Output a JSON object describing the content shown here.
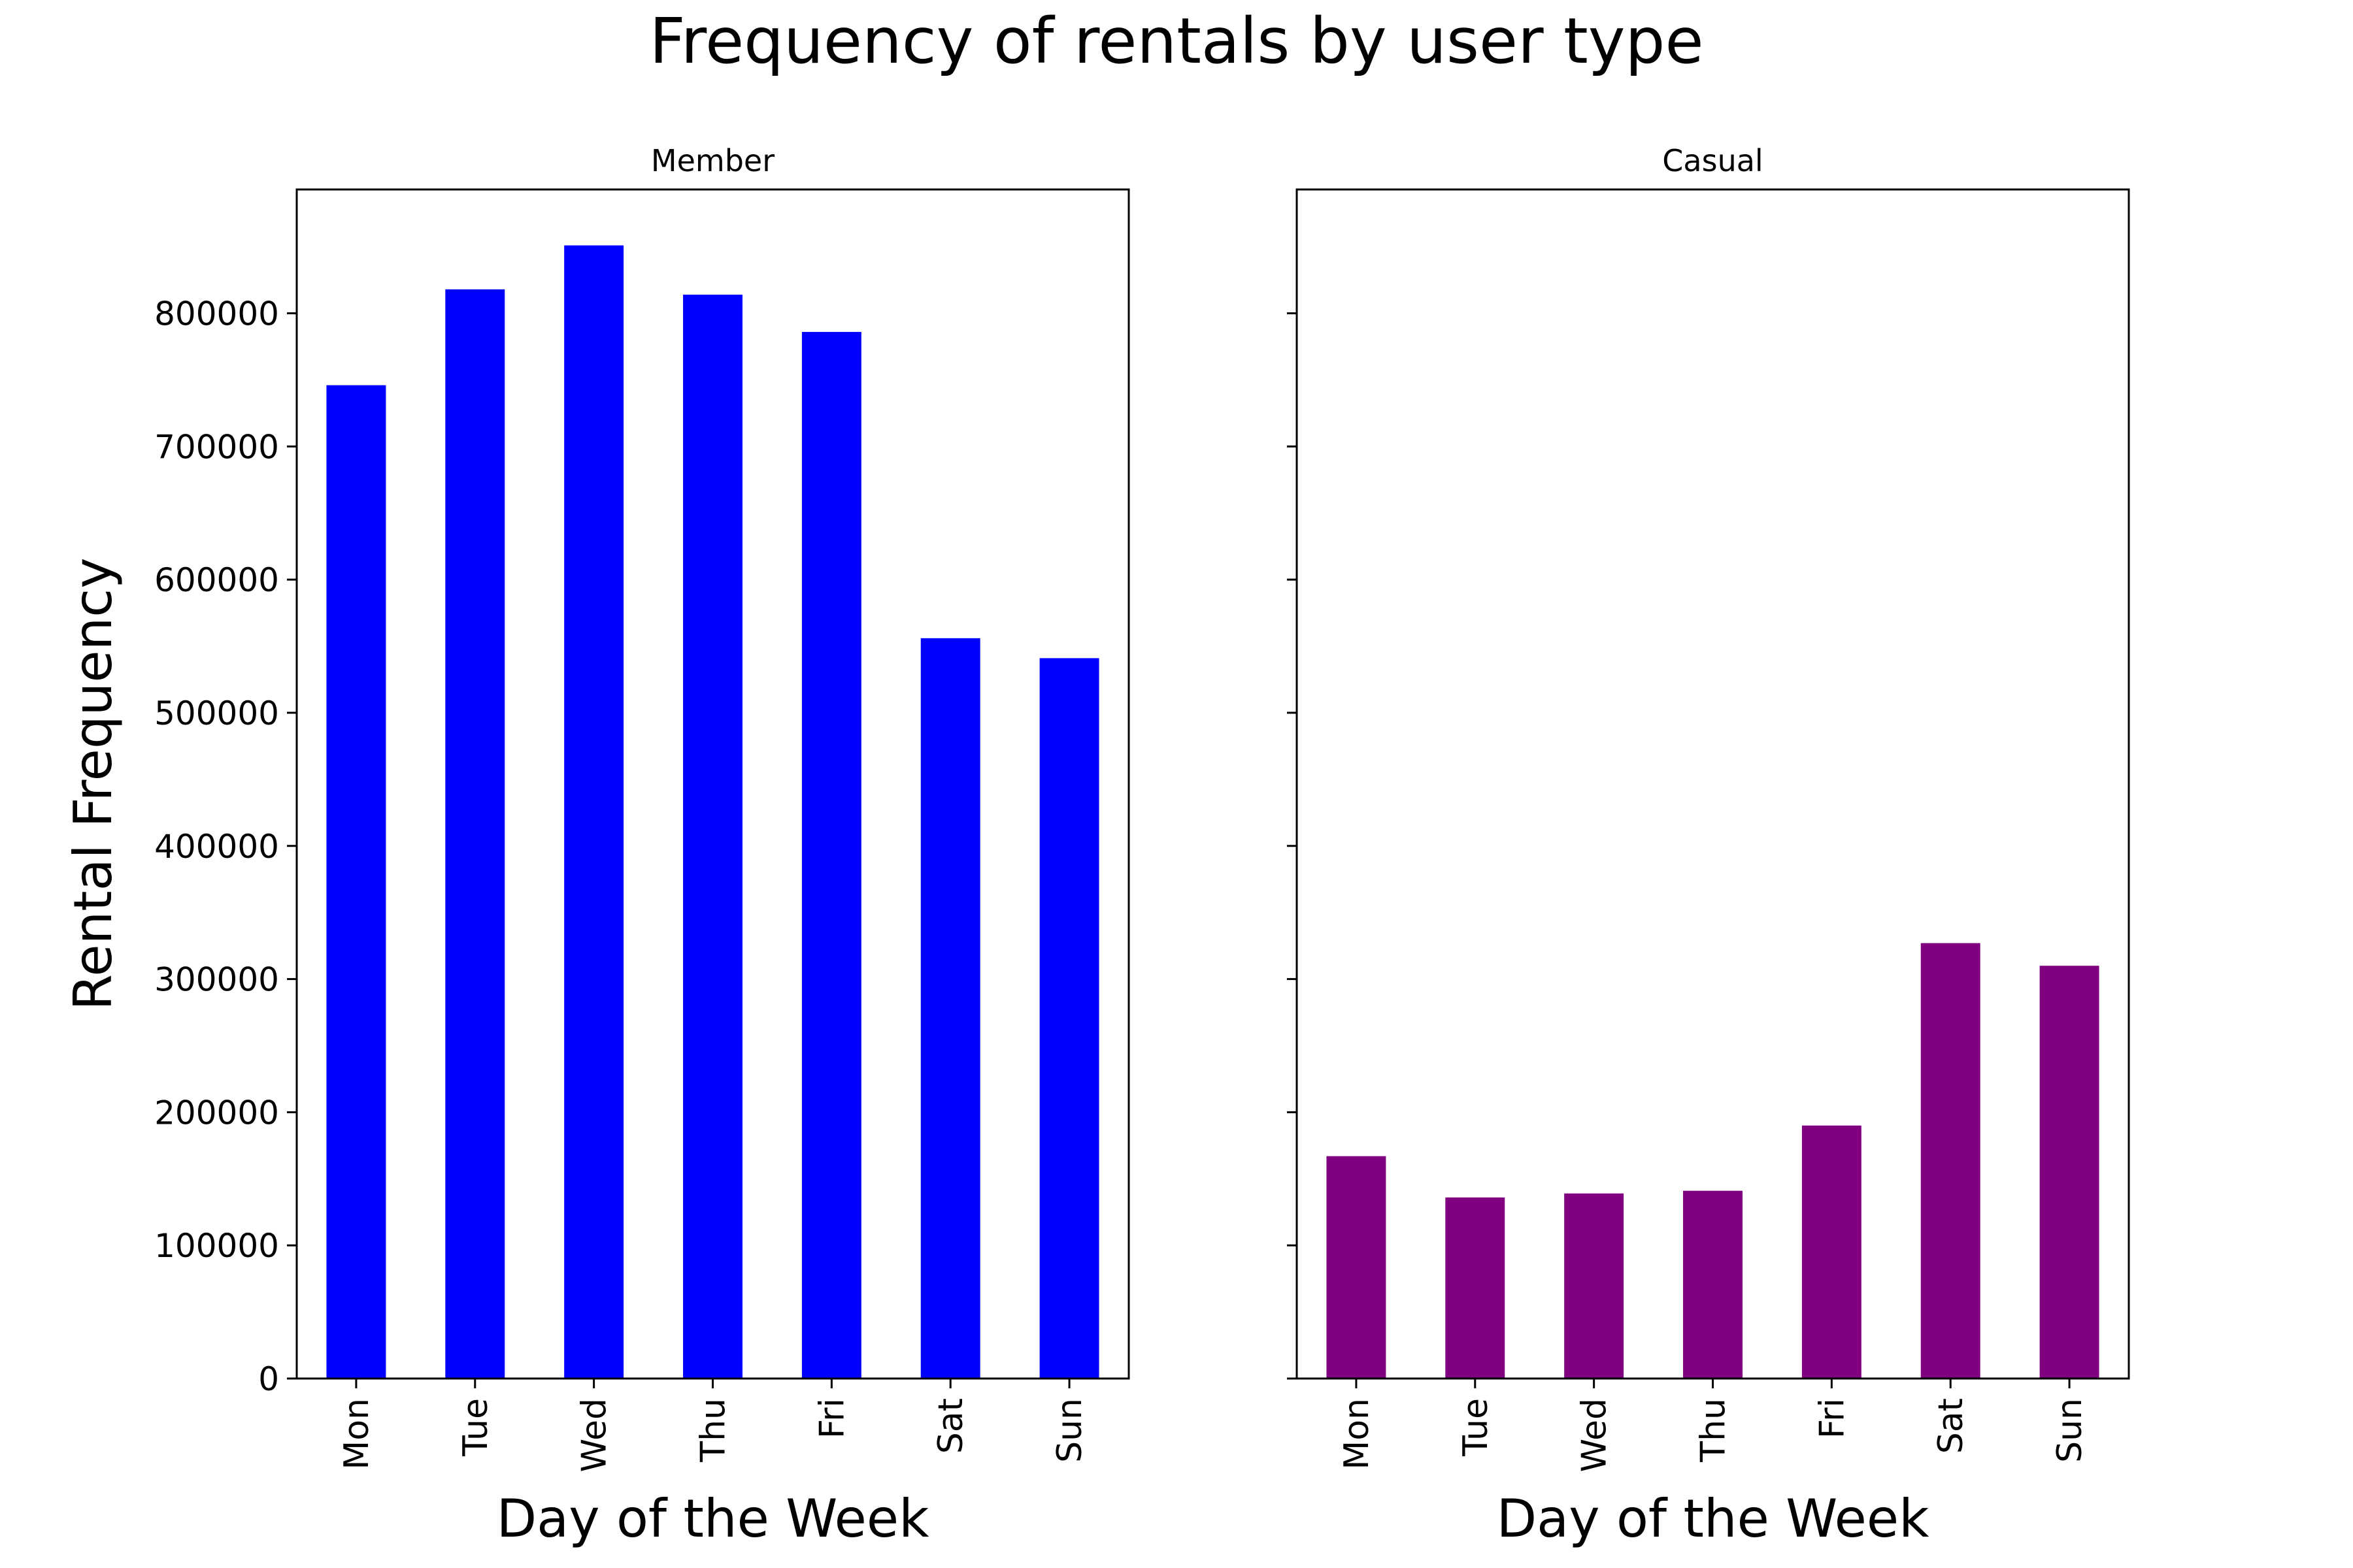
{
  "figure": {
    "title": "Frequency of rentals by user type"
  },
  "chart_data": [
    {
      "type": "bar",
      "title": "Member",
      "xlabel": "Day of the Week",
      "ylabel": "Rental Frequency",
      "categories": [
        "Mon",
        "Tue",
        "Wed",
        "Thu",
        "Fri",
        "Sat",
        "Sun"
      ],
      "values": [
        746000,
        818000,
        851000,
        814000,
        786000,
        556000,
        541000
      ],
      "color": "#0000ff",
      "ylim": [
        0,
        893000
      ],
      "yticks": [
        0,
        100000,
        200000,
        300000,
        400000,
        500000,
        600000,
        700000,
        800000
      ],
      "ytick_labels": [
        "0",
        "100000",
        "200000",
        "300000",
        "400000",
        "500000",
        "600000",
        "700000",
        "800000"
      ],
      "grid": false
    },
    {
      "type": "bar",
      "title": "Casual",
      "xlabel": "Day of the Week",
      "ylabel": "",
      "categories": [
        "Mon",
        "Tue",
        "Wed",
        "Thu",
        "Fri",
        "Sat",
        "Sun"
      ],
      "values": [
        167000,
        136000,
        139000,
        141000,
        190000,
        327000,
        310000
      ],
      "color": "#800080",
      "ylim": [
        0,
        893000
      ],
      "yticks": [
        0,
        100000,
        200000,
        300000,
        400000,
        500000,
        600000,
        700000,
        800000
      ],
      "ytick_labels": [],
      "grid": false
    }
  ]
}
